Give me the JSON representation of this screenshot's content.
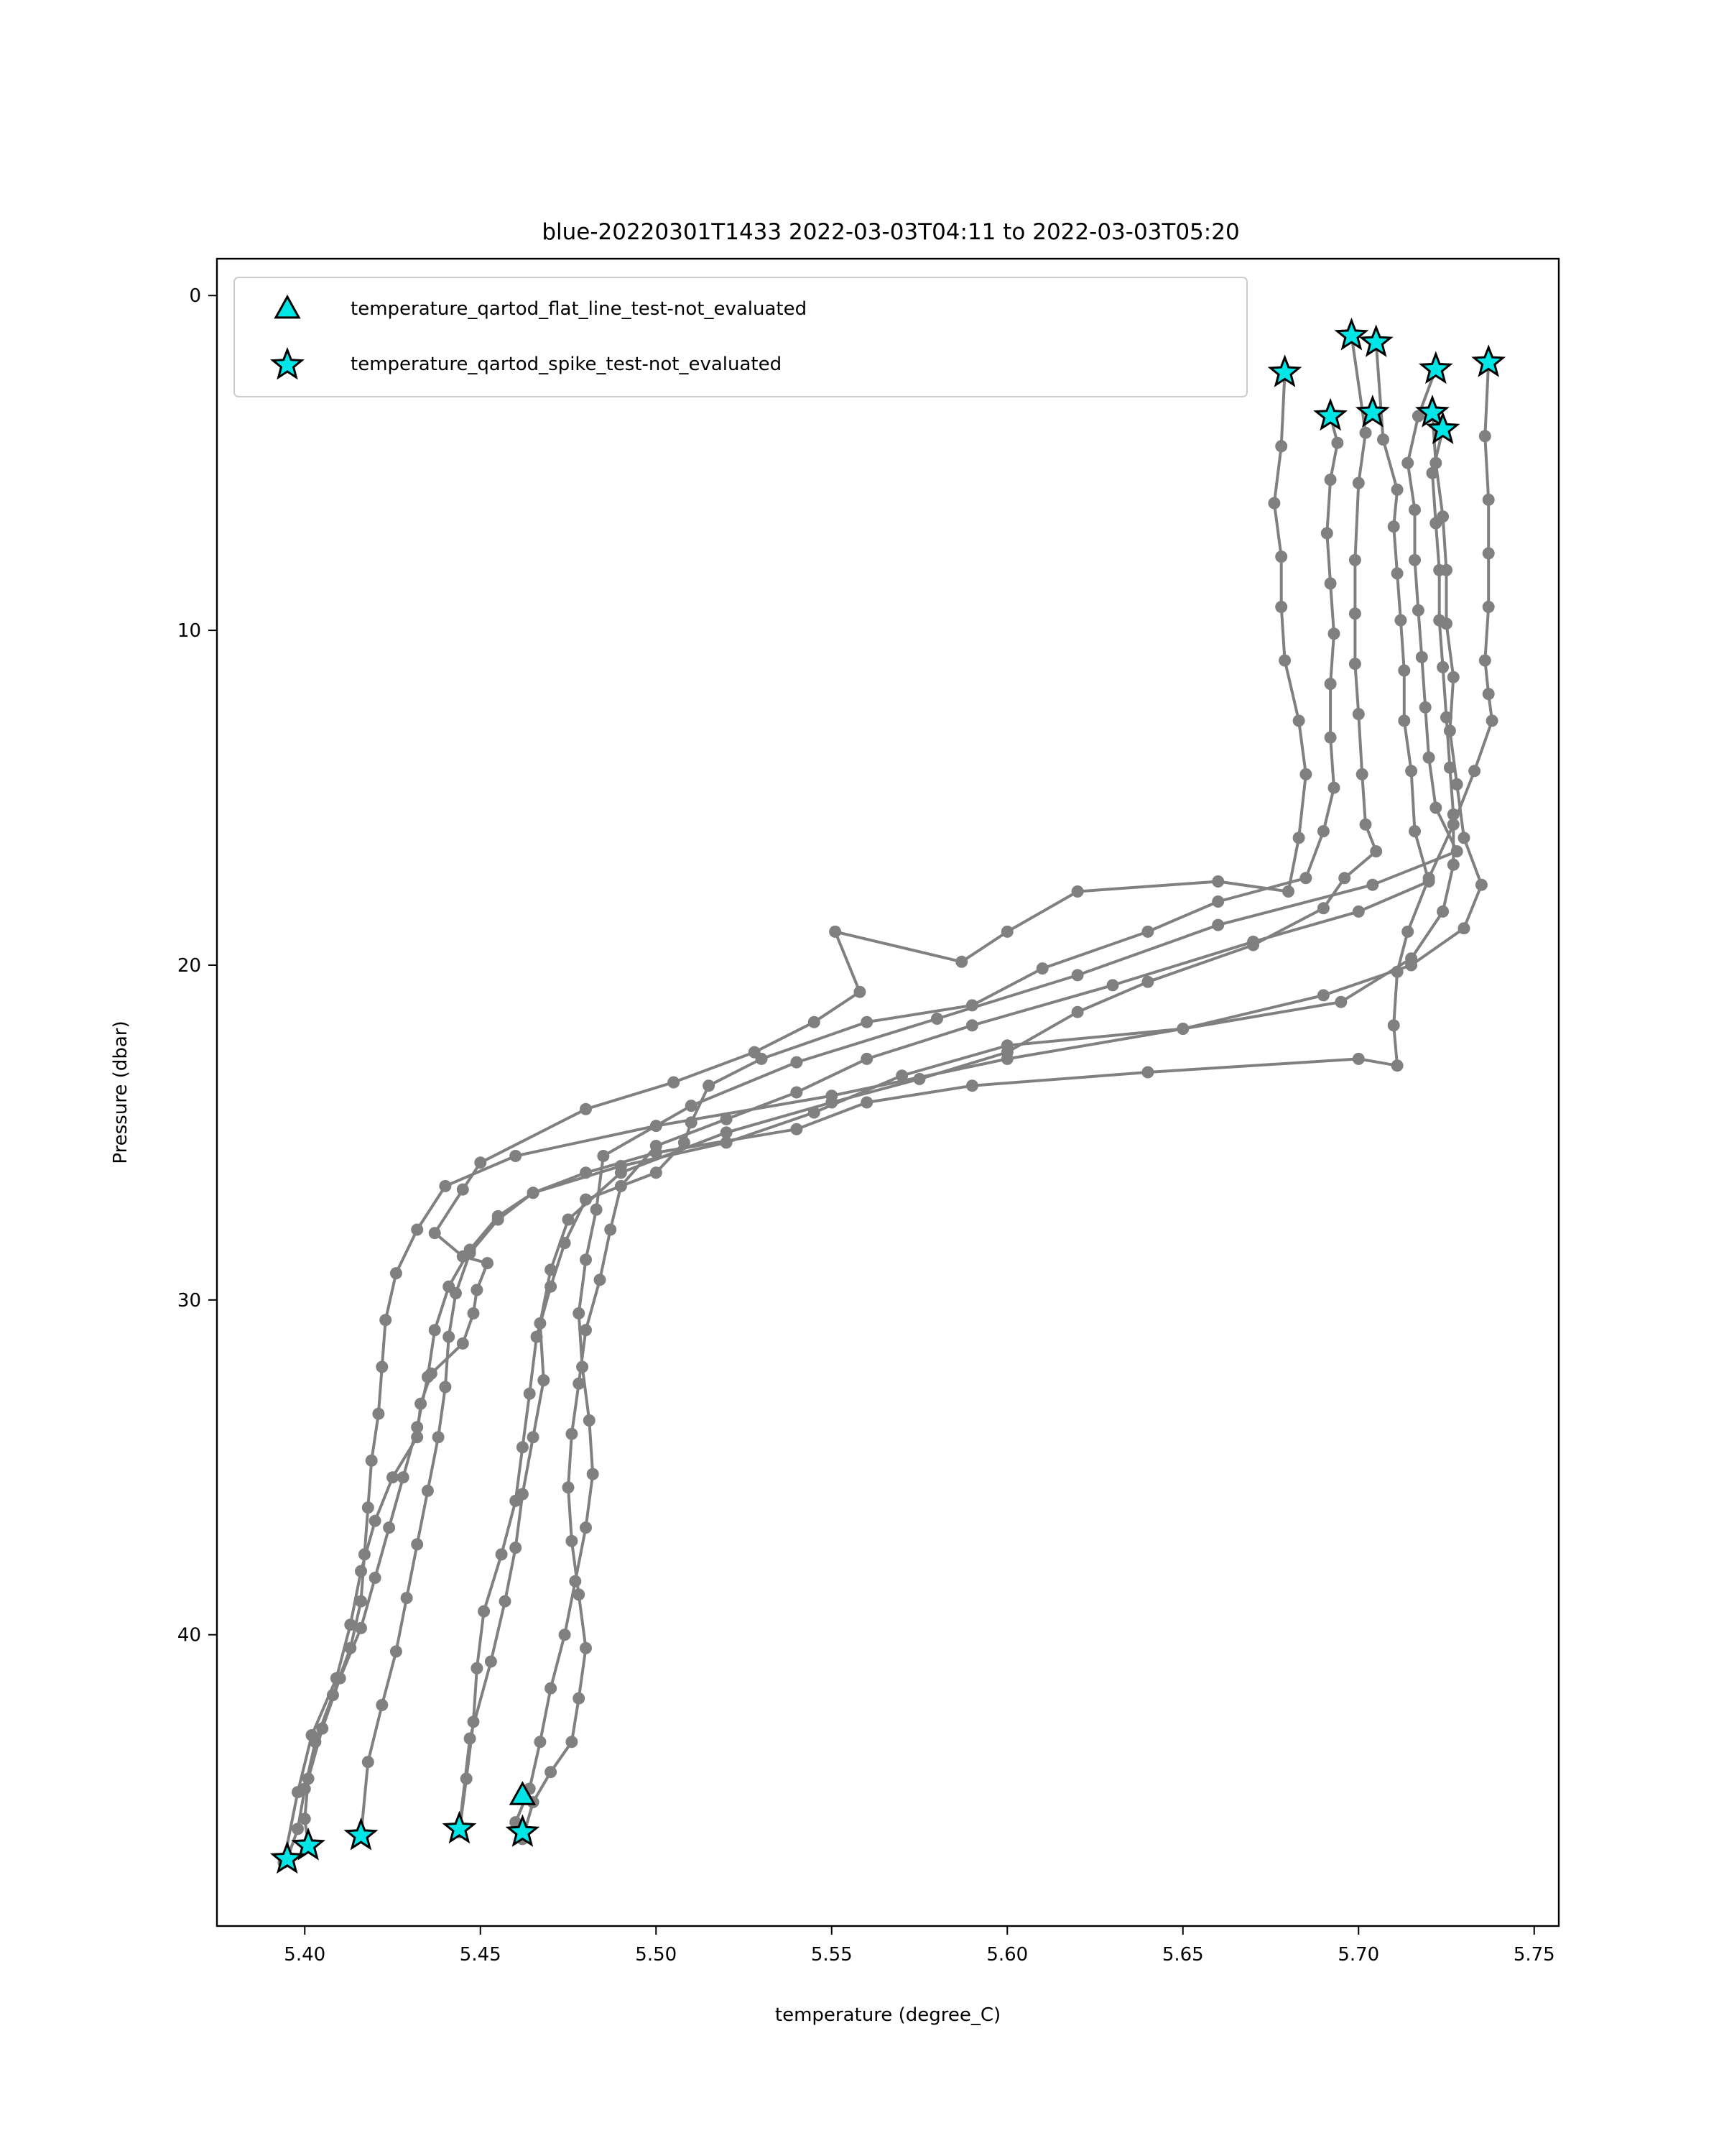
{
  "chart_data": {
    "type": "line",
    "title": "blue-20220301T1433 2022-03-03T04:11 to 2022-03-03T05:20",
    "xlabel": "temperature (degree_C)",
    "ylabel": "Pressure (dbar)",
    "xlim": [
      5.375,
      5.757
    ],
    "ylim": [
      48.7,
      -1.1
    ],
    "y_inverted": true,
    "xticks": [
      "5.40",
      "5.45",
      "5.50",
      "5.55",
      "5.60",
      "5.65",
      "5.70",
      "5.75"
    ],
    "xtick_values": [
      5.4,
      5.45,
      5.5,
      5.55,
      5.6,
      5.65,
      5.7,
      5.75
    ],
    "yticks": [
      "0",
      "10",
      "20",
      "30",
      "40"
    ],
    "ytick_values": [
      0,
      10,
      20,
      30,
      40
    ],
    "grid": false,
    "legend_position": "top-left",
    "colors": {
      "line": "#808080",
      "marker_fill": "#00e5e5",
      "marker_edge": "#000000"
    },
    "legend": [
      {
        "label": "temperature_qartod_flat_line_test-not_evaluated",
        "marker": "triangle"
      },
      {
        "label": "temperature_qartod_spike_test-not_evaluated",
        "marker": "star"
      }
    ],
    "series": [
      {
        "t": [
          5.679,
          5.678,
          5.676,
          5.678,
          5.678,
          5.679,
          5.683,
          5.685,
          5.683,
          5.68,
          5.66,
          5.62,
          5.6,
          5.587,
          5.551,
          5.558,
          5.545,
          5.528,
          5.505,
          5.48,
          5.45,
          5.445,
          5.437,
          5.445,
          5.452,
          5.449,
          5.448,
          5.445,
          5.436,
          5.433,
          5.432,
          5.425,
          5.42,
          5.416,
          5.413,
          5.409,
          5.402,
          5.398,
          5.394
        ],
        "p": [
          2.3,
          4.5,
          6.2,
          7.8,
          9.3,
          10.9,
          12.7,
          14.3,
          16.2,
          17.8,
          17.5,
          17.8,
          19.0,
          19.9,
          19.0,
          20.8,
          21.7,
          22.6,
          23.5,
          24.3,
          25.9,
          26.7,
          28.0,
          28.7,
          28.9,
          29.7,
          30.4,
          31.3,
          32.2,
          33.1,
          34.1,
          35.3,
          36.6,
          38.1,
          39.7,
          41.3,
          43.0,
          44.7,
          46.8
        ]
      },
      {
        "t": [
          5.692,
          5.694,
          5.692,
          5.691,
          5.692,
          5.693,
          5.692,
          5.692,
          5.693,
          5.69,
          5.685,
          5.66,
          5.64,
          5.61,
          5.59,
          5.56,
          5.53,
          5.515,
          5.51,
          5.508,
          5.5,
          5.48,
          5.474,
          5.47,
          5.466,
          5.464,
          5.462,
          5.46,
          5.456,
          5.451,
          5.449,
          5.448,
          5.446,
          5.444
        ],
        "p": [
          3.6,
          4.4,
          5.5,
          7.1,
          8.6,
          10.1,
          11.6,
          13.2,
          14.7,
          16.0,
          17.4,
          18.1,
          19.0,
          20.1,
          21.2,
          21.7,
          22.8,
          23.6,
          24.7,
          25.3,
          26.2,
          27.0,
          28.3,
          29.6,
          31.1,
          32.8,
          34.4,
          36.0,
          37.6,
          39.3,
          41.0,
          42.6,
          44.3,
          45.9
        ]
      },
      {
        "t": [
          5.698,
          5.702,
          5.7,
          5.699,
          5.699,
          5.699,
          5.7,
          5.701,
          5.702,
          5.705,
          5.696,
          5.69,
          5.67,
          5.64,
          5.62,
          5.6,
          5.575,
          5.55,
          5.52,
          5.49,
          5.475,
          5.47,
          5.467,
          5.468,
          5.465,
          5.462,
          5.46,
          5.457,
          5.453,
          5.447,
          5.444
        ],
        "p": [
          1.2,
          4.1,
          5.6,
          7.9,
          9.5,
          11.0,
          12.5,
          14.3,
          15.8,
          16.6,
          17.4,
          18.3,
          19.4,
          20.5,
          21.4,
          22.6,
          23.4,
          24.1,
          25.0,
          26.2,
          27.6,
          29.1,
          30.7,
          32.4,
          34.1,
          35.8,
          37.4,
          39.0,
          40.8,
          43.1,
          45.8
        ]
      },
      {
        "t": [
          5.705,
          5.707,
          5.711,
          5.71,
          5.711,
          5.712,
          5.713,
          5.713,
          5.715,
          5.716,
          5.72,
          5.7,
          5.67,
          5.63,
          5.59,
          5.56,
          5.54,
          5.52,
          5.5,
          5.49,
          5.487,
          5.484,
          5.48,
          5.478,
          5.476,
          5.475,
          5.476,
          5.478,
          5.48,
          5.478,
          5.476,
          5.47,
          5.465,
          5.462
        ],
        "p": [
          1.4,
          4.3,
          5.8,
          6.9,
          8.3,
          9.7,
          11.2,
          12.7,
          14.2,
          16.0,
          17.5,
          18.4,
          19.3,
          20.6,
          21.8,
          22.8,
          23.8,
          24.6,
          25.4,
          26.6,
          27.9,
          29.4,
          30.9,
          32.5,
          34.0,
          35.6,
          37.2,
          38.8,
          40.4,
          41.9,
          43.2,
          44.1,
          45.0,
          46.1
        ]
      },
      {
        "t": [
          5.722,
          5.717,
          5.714,
          5.716,
          5.716,
          5.717,
          5.718,
          5.719,
          5.72,
          5.722,
          5.728,
          5.704,
          5.66,
          5.62,
          5.58,
          5.54,
          5.51,
          5.485,
          5.483,
          5.48,
          5.478,
          5.479,
          5.481,
          5.482,
          5.48,
          5.477,
          5.474,
          5.47,
          5.467,
          5.464,
          5.46,
          5.462
        ],
        "p": [
          2.2,
          3.6,
          5.0,
          6.4,
          7.9,
          9.4,
          10.8,
          12.3,
          13.8,
          15.3,
          16.6,
          17.6,
          18.8,
          20.3,
          21.6,
          22.9,
          24.2,
          25.7,
          27.3,
          28.8,
          30.4,
          32.0,
          33.6,
          35.2,
          36.8,
          38.4,
          40.0,
          41.6,
          43.2,
          44.6,
          45.6,
          45.8
        ]
      },
      {
        "t": [
          5.724,
          5.721,
          5.722,
          5.723,
          5.723,
          5.724,
          5.725,
          5.726,
          5.727,
          5.727,
          5.724,
          5.715,
          5.695,
          5.65,
          5.6,
          5.57,
          5.545,
          5.52,
          5.49,
          5.465,
          5.455,
          5.447,
          5.443,
          5.441,
          5.44,
          5.438,
          5.435,
          5.432,
          5.429,
          5.426,
          5.422,
          5.418,
          5.416
        ],
        "p": [
          4.0,
          5.3,
          6.8,
          8.2,
          9.7,
          11.1,
          12.6,
          14.1,
          15.5,
          17.0,
          18.4,
          19.8,
          21.1,
          21.9,
          22.4,
          23.3,
          24.4,
          25.3,
          26.0,
          26.8,
          27.6,
          28.6,
          29.8,
          31.1,
          32.6,
          34.1,
          35.7,
          37.3,
          38.9,
          40.5,
          42.1,
          43.8,
          46.0
        ]
      },
      {
        "t": [
          5.737,
          5.736,
          5.737,
          5.737,
          5.737,
          5.736,
          5.737,
          5.738,
          5.733,
          5.727,
          5.72,
          5.714,
          5.711,
          5.71,
          5.711,
          5.7,
          5.64,
          5.59,
          5.56,
          5.54,
          5.5,
          5.48,
          5.465,
          5.455,
          5.447,
          5.441,
          5.437,
          5.435,
          5.432,
          5.428,
          5.424,
          5.42,
          5.416,
          5.41,
          5.405,
          5.401,
          5.4,
          5.401
        ],
        "p": [
          2.0,
          4.2,
          6.1,
          7.7,
          9.3,
          10.9,
          11.9,
          12.7,
          14.2,
          15.8,
          17.4,
          19.0,
          20.2,
          21.8,
          23.0,
          22.8,
          23.2,
          23.6,
          24.1,
          24.9,
          25.6,
          26.2,
          26.8,
          27.5,
          28.5,
          29.6,
          30.9,
          32.3,
          33.8,
          35.3,
          36.8,
          38.3,
          39.8,
          41.3,
          42.8,
          44.3,
          45.5,
          46.3
        ]
      },
      {
        "t": [
          5.721,
          5.722,
          5.724,
          5.725,
          5.725,
          5.727,
          5.726,
          5.728,
          5.73,
          5.735,
          5.73,
          5.715,
          5.69,
          5.65,
          5.6,
          5.55,
          5.5,
          5.46,
          5.44,
          5.432,
          5.426,
          5.423,
          5.422,
          5.421,
          5.419,
          5.418,
          5.417,
          5.416,
          5.413,
          5.408,
          5.403,
          5.4,
          5.398,
          5.395
        ],
        "p": [
          3.5,
          5.0,
          6.6,
          8.2,
          9.8,
          11.4,
          13.0,
          14.6,
          16.2,
          17.6,
          18.9,
          20.0,
          20.9,
          21.9,
          22.8,
          23.9,
          24.8,
          25.7,
          26.6,
          27.9,
          29.2,
          30.6,
          32.0,
          33.4,
          34.8,
          36.2,
          37.6,
          39.0,
          40.4,
          41.8,
          43.2,
          44.6,
          45.8,
          46.7
        ]
      }
    ],
    "flat_line_markers": [
      {
        "t": 5.462,
        "p": 44.8
      }
    ],
    "spike_markers": [
      {
        "t": 5.698,
        "p": 1.2
      },
      {
        "t": 5.705,
        "p": 1.4
      },
      {
        "t": 5.737,
        "p": 2.0
      },
      {
        "t": 5.722,
        "p": 2.2
      },
      {
        "t": 5.679,
        "p": 2.3
      },
      {
        "t": 5.692,
        "p": 3.6
      },
      {
        "t": 5.704,
        "p": 3.5
      },
      {
        "t": 5.721,
        "p": 3.5
      },
      {
        "t": 5.724,
        "p": 4.0
      },
      {
        "t": 5.444,
        "p": 45.8
      },
      {
        "t": 5.462,
        "p": 45.9
      },
      {
        "t": 5.416,
        "p": 46.0
      },
      {
        "t": 5.401,
        "p": 46.3
      },
      {
        "t": 5.395,
        "p": 46.7
      }
    ]
  }
}
